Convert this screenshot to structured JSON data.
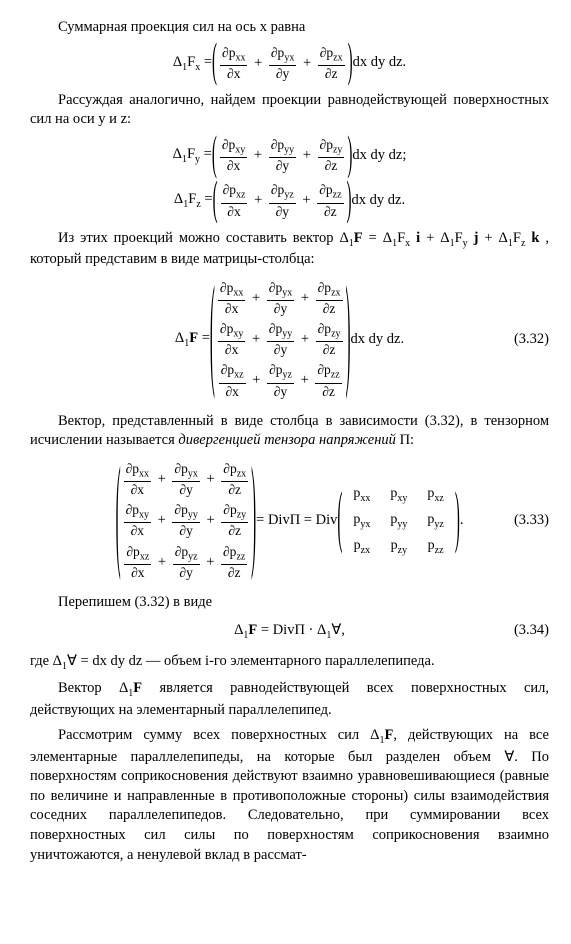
{
  "para1": "Суммарная проекция сил на ось х равна",
  "eq1": {
    "lhs_pre": "Δ",
    "lhs_sub1": "1",
    "lhs_F": "F",
    "lhs_sub2": "x",
    "eq": " = ",
    "t1n": "∂p",
    "t1ns": "xx",
    "t1d": "∂x",
    "t2n": "∂p",
    "t2ns": "yx",
    "t2d": "∂y",
    "t3n": "∂p",
    "t3ns": "zx",
    "t3d": "∂z",
    "suffix": " dx dy dz."
  },
  "para2": "Рассуждая аналогично, найдем проекции равнодействующей поверхностных сил на оси y и z:",
  "eq2": {
    "lhs_sub2": "y",
    "t1ns": "xy",
    "t2ns": "yy",
    "t3ns": "zy",
    "suffix": " dx dy dz;"
  },
  "eq3": {
    "lhs_sub2": "z",
    "t1ns": "xz",
    "t2ns": "yz",
    "t3ns": "zz",
    "suffix": " dx dy dz."
  },
  "para3a": "Из этих проекций можно составить вектор ",
  "para3b": "Δ",
  "para3b_s1": "1",
  "para3b_F": "F",
  "para3b_eq": " = Δ",
  "para3b_s2": "1",
  "para3b_Fx": "F",
  "para3b_sx": "x",
  "para3b_i": " i ",
  "para3b_p1": "+ Δ",
  "para3b_Fy": "F",
  "para3b_sy": "y",
  "para3b_j": " j ",
  "para3b_p2": "+ Δ",
  "para3b_Fz": "F",
  "para3b_sz": "z",
  "para3b_k": " k ",
  "para3c": ", который представим в виде матрицы-столбца:",
  "eq32": {
    "r1": {
      "a": "xx",
      "b": "yx",
      "c": "zx"
    },
    "r2": {
      "a": "xy",
      "b": "yy",
      "c": "zy"
    },
    "r3": {
      "a": "xz",
      "b": "yz",
      "c": "zz"
    },
    "suffix": " dx dy dz.",
    "num": "(3.32)"
  },
  "para4a": "Вектор, представленный в виде столбца в зависимости (3.32), в тензорном исчислении называется ",
  "para4b": "дивергенцией тензора напряжений",
  "para4c": " П:",
  "eq33": {
    "mid": " = DivП = Div",
    "m": [
      [
        "p",
        "xx",
        "p",
        "xy",
        "p",
        "xz"
      ],
      [
        "p",
        "yx",
        "p",
        "yy",
        "p",
        "yz"
      ],
      [
        "p",
        "zx",
        "p",
        "zy",
        "p",
        "zz"
      ]
    ],
    "dot": ".",
    "num": "(3.33)"
  },
  "para5": "Перепишем (3.32) в виде",
  "eq34": {
    "lhs": "Δ",
    "s1": "1",
    "F": "F",
    "eq": " = DivП · Δ",
    "s2": "1",
    "V": "∀",
    "comma": ",",
    "num": "(3.34)"
  },
  "para6a": "где Δ",
  "para6a_s": "1",
  "para6a_v": "∀",
  "para6a_eq": " = dx dy dz  —  объем i-го элементарного параллелепипеда.",
  "para7a": "Вектор ",
  "para7b": "Δ",
  "para7b_s": "1",
  "para7b_F": "F",
  "para7c": " является равнодействующей всех поверхностных сил, действующих на элементарный параллелепипед.",
  "para8a": "Рассмотрим сумму всех поверхностных сил ",
  "para8b": "Δ",
  "para8b_s": "1",
  "para8b_F": "F",
  "para8c": ", действующих на все элементарные параллелепипеды, на которые был разделен объем ",
  "para8d": "∀",
  "para8e": ". По поверхностям соприкосновения действуют взаимно уравновешивающиеся (равные по величине и направленные в противоположные стороны) силы взаимодействия соседних параллелепипедов. Следовательно, при суммировании всех поверхностных сил силы по поверхностям соприкосновения взаимно уничтожаются, а ненулевой вклад в рассмат-"
}
